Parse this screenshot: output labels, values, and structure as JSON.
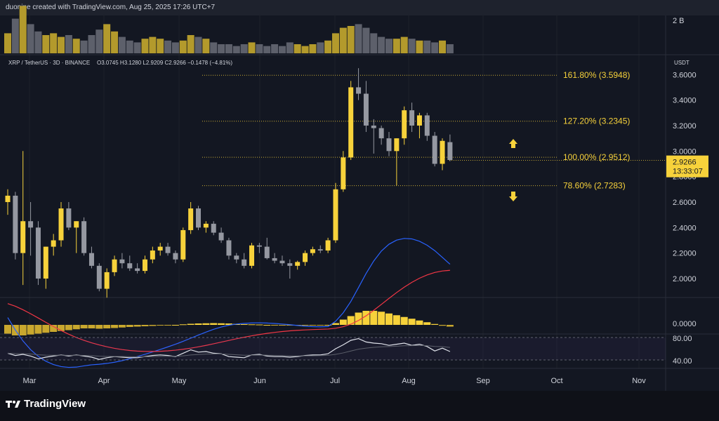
{
  "header": {
    "attribution": "duonine created with TradingView.com, Aug 25, 2025 17:26 UTC+7"
  },
  "legend": {
    "symbol": "XRP / TetherUS · 3D · BINANCE",
    "ohlc": "O3.0745  H3.1280  L2.9209  C2.9266  −0.1478 (−4.81%)"
  },
  "price_axis": {
    "currency": "USDT",
    "ticks": [
      "3.6000",
      "3.4000",
      "3.2000",
      "3.0000",
      "2.8000",
      "2.6000",
      "2.4000",
      "2.2000",
      "2.0000"
    ],
    "current_price": "2.9266",
    "countdown": "13:33:07"
  },
  "volume_axis": {
    "label": "2 B"
  },
  "macd_axis": {
    "label": "0.0000"
  },
  "rsi_axis": {
    "upper": "80.00",
    "lower": "40.00"
  },
  "time_axis": [
    "Mar",
    "Apr",
    "May",
    "Jun",
    "Jul",
    "Aug",
    "Sep",
    "Oct",
    "Nov"
  ],
  "fib_levels": [
    {
      "label": "161.80% (3.5948)",
      "price": 3.5948
    },
    {
      "label": "127.20% (3.2345)",
      "price": 3.2345
    },
    {
      "label": "100.00% (2.9512)",
      "price": 2.9512
    },
    {
      "label": "78.60% (2.7283)",
      "price": 2.7283
    }
  ],
  "colors": {
    "up": "#f7d23b",
    "down": "#9598a1",
    "macd_line": "#2962ff",
    "signal_line": "#f23645",
    "rsi": "#e0e3eb",
    "fib": "#f7d23b",
    "background": "#131722"
  },
  "footer": {
    "brand": "TradingView"
  },
  "chart_data": {
    "type": "candlestick",
    "symbol": "XRP / TetherUS",
    "interval": "3D",
    "exchange": "BINANCE",
    "ylim": [
      1.8,
      3.7
    ],
    "candles": [
      [
        2.6,
        2.7,
        2.5,
        2.65
      ],
      [
        2.65,
        2.68,
        2.15,
        2.2
      ],
      [
        2.2,
        3.0,
        1.95,
        2.45
      ],
      [
        2.45,
        2.6,
        2.18,
        2.4
      ],
      [
        2.4,
        2.45,
        1.95,
        2.0
      ],
      [
        2.0,
        2.25,
        1.92,
        2.25
      ],
      [
        2.25,
        2.35,
        2.18,
        2.3
      ],
      [
        2.3,
        2.6,
        2.25,
        2.55
      ],
      [
        2.55,
        2.6,
        2.38,
        2.4
      ],
      [
        2.4,
        2.45,
        2.2,
        2.45
      ],
      [
        2.45,
        2.48,
        2.18,
        2.2
      ],
      [
        2.2,
        2.25,
        2.08,
        2.1
      ],
      [
        2.1,
        2.12,
        1.9,
        1.92
      ],
      [
        1.92,
        2.08,
        1.85,
        2.05
      ],
      [
        2.05,
        2.18,
        2.02,
        2.15
      ],
      [
        2.15,
        2.2,
        2.08,
        2.12
      ],
      [
        2.12,
        2.18,
        2.06,
        2.08
      ],
      [
        2.08,
        2.12,
        2.04,
        2.06
      ],
      [
        2.06,
        2.18,
        2.04,
        2.15
      ],
      [
        2.15,
        2.25,
        2.12,
        2.22
      ],
      [
        2.22,
        2.28,
        2.18,
        2.25
      ],
      [
        2.25,
        2.28,
        2.18,
        2.2
      ],
      [
        2.2,
        2.22,
        2.12,
        2.15
      ],
      [
        2.15,
        2.4,
        2.13,
        2.38
      ],
      [
        2.38,
        2.6,
        2.35,
        2.55
      ],
      [
        2.55,
        2.57,
        2.38,
        2.4
      ],
      [
        2.4,
        2.45,
        2.36,
        2.43
      ],
      [
        2.43,
        2.45,
        2.34,
        2.36
      ],
      [
        2.36,
        2.4,
        2.28,
        2.3
      ],
      [
        2.3,
        2.32,
        2.15,
        2.18
      ],
      [
        2.18,
        2.2,
        2.12,
        2.15
      ],
      [
        2.15,
        2.2,
        2.08,
        2.1
      ],
      [
        2.1,
        2.28,
        2.08,
        2.26
      ],
      [
        2.26,
        2.28,
        2.2,
        2.25
      ],
      [
        2.25,
        2.32,
        2.15,
        2.16
      ],
      [
        2.16,
        2.2,
        2.12,
        2.14
      ],
      [
        2.14,
        2.18,
        2.1,
        2.12
      ],
      [
        2.12,
        2.15,
        2.0,
        2.1
      ],
      [
        2.1,
        2.14,
        2.07,
        2.13
      ],
      [
        2.13,
        2.22,
        2.1,
        2.2
      ],
      [
        2.2,
        2.25,
        2.18,
        2.23
      ],
      [
        2.23,
        2.26,
        2.2,
        2.22
      ],
      [
        2.22,
        2.32,
        2.2,
        2.3
      ],
      [
        2.3,
        2.75,
        2.28,
        2.7
      ],
      [
        2.7,
        3.0,
        2.68,
        2.95
      ],
      [
        2.95,
        3.55,
        2.93,
        3.5
      ],
      [
        3.5,
        3.65,
        3.4,
        3.45
      ],
      [
        3.45,
        3.55,
        3.15,
        3.2
      ],
      [
        3.2,
        3.25,
        2.98,
        3.18
      ],
      [
        3.18,
        3.2,
        3.05,
        3.1
      ],
      [
        3.1,
        3.15,
        2.96,
        3.0
      ],
      [
        3.0,
        3.1,
        2.73,
        3.1
      ],
      [
        3.1,
        3.35,
        3.05,
        3.32
      ],
      [
        3.32,
        3.38,
        3.15,
        3.2
      ],
      [
        3.2,
        3.3,
        3.1,
        3.28
      ],
      [
        3.28,
        3.3,
        3.08,
        3.12
      ],
      [
        3.12,
        3.15,
        2.88,
        2.9
      ],
      [
        2.9,
        3.1,
        2.85,
        3.08
      ],
      [
        3.07,
        3.13,
        2.92,
        2.93
      ]
    ],
    "volume": [
      0.55,
      0.95,
      1.3,
      0.8,
      0.6,
      0.5,
      0.55,
      0.45,
      0.5,
      0.4,
      0.35,
      0.5,
      0.65,
      0.8,
      0.6,
      0.45,
      0.35,
      0.3,
      0.4,
      0.45,
      0.4,
      0.35,
      0.3,
      0.35,
      0.5,
      0.45,
      0.4,
      0.3,
      0.25,
      0.25,
      0.2,
      0.25,
      0.3,
      0.25,
      0.2,
      0.25,
      0.2,
      0.3,
      0.25,
      0.2,
      0.25,
      0.3,
      0.35,
      0.55,
      0.7,
      0.75,
      0.8,
      0.7,
      0.55,
      0.45,
      0.4,
      0.4,
      0.45,
      0.4,
      0.35,
      0.35,
      0.3,
      0.35,
      0.25
    ],
    "macd": {
      "macd_line_start": 0.11,
      "signal_line_start": 0.13,
      "histogram": [
        -0.05,
        -0.06,
        -0.06,
        -0.055,
        -0.05,
        -0.045,
        -0.04,
        -0.035,
        -0.03,
        -0.025,
        -0.02,
        -0.02,
        -0.022,
        -0.02,
        -0.018,
        -0.015,
        -0.012,
        -0.01,
        -0.008,
        -0.006,
        -0.004,
        -0.002,
        0.0,
        0.003,
        0.006,
        0.008,
        0.009,
        0.01,
        0.009,
        0.008,
        0.006,
        0.004,
        0.003,
        0.002,
        0.0,
        -0.001,
        -0.002,
        -0.003,
        -0.004,
        -0.004,
        -0.003,
        -0.002,
        0.0,
        0.01,
        0.03,
        0.05,
        0.07,
        0.08,
        0.08,
        0.075,
        0.065,
        0.055,
        0.045,
        0.035,
        0.025,
        0.015,
        0.005,
        -0.005,
        -0.01
      ]
    },
    "rsi": {
      "upper_band": 80,
      "lower_band": 40,
      "values": [
        52,
        48,
        50,
        47,
        42,
        45,
        47,
        49,
        47,
        49,
        47,
        45,
        41,
        44,
        46,
        45,
        44,
        44,
        46,
        48,
        49,
        48,
        46,
        52,
        58,
        54,
        55,
        52,
        51,
        46,
        45,
        44,
        49,
        50,
        47,
        46,
        46,
        45,
        46,
        48,
        49,
        49,
        51,
        60,
        67,
        75,
        78,
        72,
        70,
        69,
        66,
        68,
        70,
        66,
        68,
        64,
        56,
        61,
        55
      ]
    }
  }
}
